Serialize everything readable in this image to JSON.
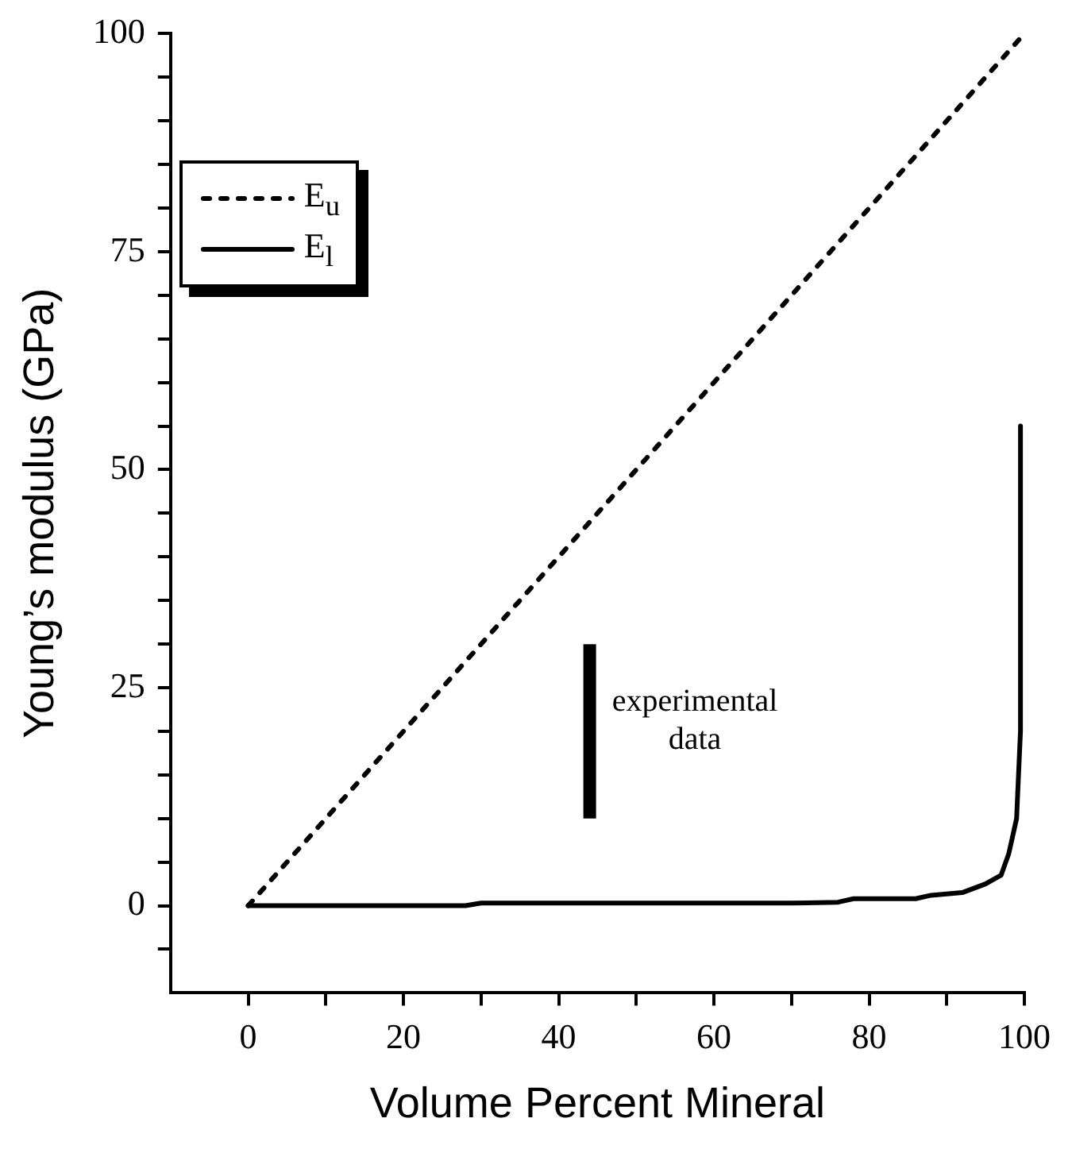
{
  "chart_data": {
    "type": "line",
    "xlabel": "Volume Percent Mineral",
    "ylabel": "Young’s modulus (GPa)",
    "xlim": [
      -10,
      100
    ],
    "ylim": [
      -10,
      100
    ],
    "xticks": [
      0,
      {
        "value": 10,
        "label": null
      },
      20,
      {
        "value": 30,
        "label": null
      },
      40,
      {
        "value": 50,
        "label": null
      },
      60,
      {
        "value": 70,
        "label": null
      },
      80,
      {
        "value": 90,
        "label": null
      },
      100
    ],
    "yticks": [
      {
        "value": -5,
        "label": null
      },
      0,
      {
        "value": 5,
        "label": null
      },
      {
        "value": 10,
        "label": null
      },
      {
        "value": 15,
        "label": null
      },
      {
        "value": 20,
        "label": null
      },
      25,
      {
        "value": 30,
        "label": null
      },
      {
        "value": 35,
        "label": null
      },
      {
        "value": 40,
        "label": null
      },
      {
        "value": 45,
        "label": null
      },
      50,
      {
        "value": 55,
        "label": null
      },
      {
        "value": 60,
        "label": null
      },
      {
        "value": 65,
        "label": null
      },
      {
        "value": 70,
        "label": null
      },
      75,
      {
        "value": 80,
        "label": null
      },
      {
        "value": 85,
        "label": null
      },
      {
        "value": 90,
        "label": null
      },
      {
        "value": 95,
        "label": null
      },
      100
    ],
    "grid": false,
    "legend": "top left",
    "marker": "none",
    "series": [
      {
        "name": "E$_{u}$",
        "color": "#000000",
        "line_style": "dotted",
        "x": [
          0,
          100
        ],
        "values": [
          0,
          100
        ]
      },
      {
        "name": "E$_{l}$",
        "color": "#000000",
        "line_style": "solid",
        "x": [
          0,
          20,
          28,
          30,
          50,
          70,
          76,
          78,
          86,
          88,
          92,
          95,
          97,
          98,
          99,
          99.5,
          99.5
        ],
        "values": [
          0,
          0,
          0,
          0.3,
          0.3,
          0.3,
          0.4,
          0.8,
          0.8,
          1.2,
          1.5,
          2.5,
          3.5,
          6,
          10,
          20,
          55
        ]
      },
      {
        "color": "#000000",
        "line_style": "solid",
        "x": [
          44,
          44
        ],
        "values": [
          10,
          30
        ]
      }
    ],
    "annotations": [
      {
        "text": "experimental data",
        "x": 44,
        "y": 20
      }
    ]
  }
}
